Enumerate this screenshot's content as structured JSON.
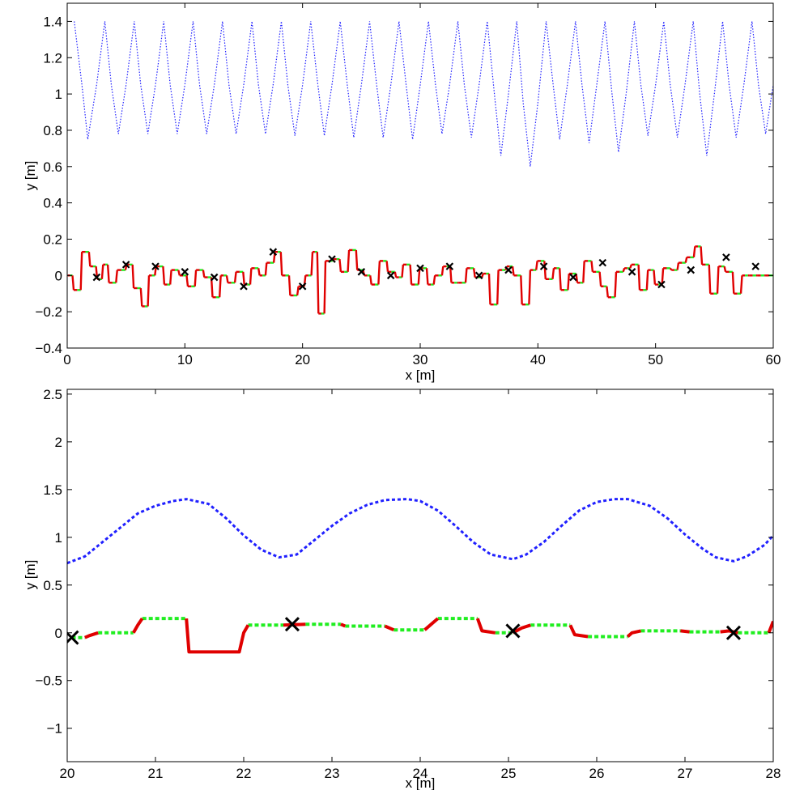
{
  "colors": {
    "ceiling": "#2020ff",
    "swing": "#e00000",
    "stance": "#20ee20",
    "marker": "#000000",
    "axes": "#000000"
  },
  "chart_data": [
    {
      "type": "line",
      "xlabel": "x [m]",
      "ylabel": "y [m]",
      "xlim": [
        0,
        60
      ],
      "ylim": [
        -0.4,
        1.5
      ],
      "xticks": [
        0,
        10,
        20,
        30,
        40,
        50,
        60
      ],
      "yticks": [
        -0.4,
        -0.2,
        0,
        0.2,
        0.4,
        0.6,
        0.8,
        1,
        1.2,
        1.4
      ],
      "ytick_labels": [
        "−0.4",
        "−0.2",
        "0",
        "0.2",
        "0.4",
        "0.6",
        "0.8",
        "1",
        "1.2",
        "1.4"
      ],
      "grid": false,
      "series": [
        {
          "role": "ceiling",
          "style": "dotted",
          "x": [
            0.6,
            1.25,
            1.75,
            2.5,
            3.2,
            3.75,
            4.35,
            5.0,
            5.7,
            6.25,
            6.85,
            7.5,
            8.2,
            8.75,
            9.35,
            10.0,
            10.7,
            11.25,
            11.85,
            12.5,
            13.2,
            13.75,
            14.35,
            15.0,
            15.7,
            16.25,
            16.85,
            17.5,
            18.2,
            18.75,
            19.35,
            20.0,
            20.7,
            21.3,
            21.85,
            22.5,
            23.2,
            23.8,
            24.35,
            25.0,
            25.7,
            26.3,
            26.85,
            27.5,
            28.2,
            28.8,
            29.35,
            30.0,
            30.7,
            31.3,
            31.85,
            32.5,
            33.2,
            33.75,
            34.35,
            35.0,
            35.7,
            36.3,
            36.85,
            37.5,
            38.2,
            38.75,
            39.35,
            40.0,
            40.7,
            41.3,
            41.85,
            42.5,
            43.2,
            43.75,
            44.35,
            45.0,
            45.7,
            46.3,
            46.85,
            47.5,
            48.2,
            48.75,
            49.35,
            50.0,
            50.7,
            51.25,
            51.85,
            52.5,
            53.2,
            53.75,
            54.35,
            55.0,
            55.7,
            56.25,
            56.85,
            57.5,
            58.2,
            58.75,
            59.35,
            60.0
          ],
          "y": [
            1.4,
            1.05,
            0.75,
            1.05,
            1.4,
            1.05,
            0.78,
            1.05,
            1.4,
            1.05,
            0.78,
            1.05,
            1.4,
            1.05,
            0.78,
            1.05,
            1.4,
            1.05,
            0.78,
            1.05,
            1.4,
            1.05,
            0.78,
            1.05,
            1.4,
            1.05,
            0.78,
            1.05,
            1.4,
            1.05,
            0.77,
            1.05,
            1.4,
            1.05,
            0.77,
            1.05,
            1.4,
            1.05,
            0.76,
            1.05,
            1.4,
            1.05,
            0.76,
            1.05,
            1.4,
            1.05,
            0.75,
            1.05,
            1.4,
            1.05,
            0.78,
            1.05,
            1.4,
            1.05,
            0.76,
            1.05,
            1.4,
            1.0,
            0.66,
            1.0,
            1.4,
            0.95,
            0.6,
            0.95,
            1.4,
            1.05,
            0.75,
            1.05,
            1.4,
            1.05,
            0.73,
            1.05,
            1.4,
            1.0,
            0.68,
            1.0,
            1.4,
            1.05,
            0.77,
            1.05,
            1.4,
            1.05,
            0.76,
            1.05,
            1.4,
            1.0,
            0.66,
            1.0,
            1.4,
            1.05,
            0.76,
            1.05,
            1.4,
            1.05,
            0.78,
            1.05
          ]
        },
        {
          "role": "terrain",
          "style": "step",
          "x": [
            0,
            0.5,
            1.2,
            1.9,
            2.5,
            3.0,
            3.5,
            4.2,
            5.0,
            5.6,
            6.3,
            6.9,
            7.5,
            8.2,
            8.8,
            9.5,
            10.2,
            10.9,
            11.6,
            12.3,
            13.0,
            13.6,
            14.3,
            15.0,
            15.6,
            16.3,
            16.9,
            17.6,
            18.2,
            18.9,
            19.6,
            20.2,
            20.8,
            21.3,
            21.9,
            22.6,
            23.2,
            23.9,
            24.6,
            25.2,
            25.8,
            26.5,
            27.2,
            27.9,
            28.5,
            29.2,
            29.9,
            30.6,
            31.2,
            31.9,
            32.6,
            33.2,
            33.9,
            34.6,
            35.3,
            35.9,
            36.6,
            37.3,
            37.9,
            38.6,
            39.3,
            39.9,
            40.6,
            41.3,
            41.9,
            42.6,
            43.3,
            43.9,
            44.6,
            45.3,
            45.9,
            46.6,
            47.3,
            47.9,
            48.6,
            49.3,
            49.9,
            50.6,
            51.3,
            51.9,
            52.6,
            53.3,
            53.9,
            54.6,
            55.3,
            55.9,
            56.6,
            57.3,
            57.9,
            58.6,
            59.3,
            60.0
          ],
          "y": [
            0.0,
            -0.08,
            0.13,
            0.05,
            -0.02,
            0.06,
            -0.04,
            0.03,
            0.06,
            -0.07,
            -0.17,
            0.0,
            0.05,
            -0.05,
            0.03,
            0.0,
            -0.06,
            0.03,
            -0.01,
            -0.12,
            0.0,
            -0.04,
            0.02,
            -0.05,
            0.04,
            0.0,
            0.07,
            0.13,
            0.0,
            -0.11,
            -0.06,
            0.0,
            0.13,
            -0.21,
            0.08,
            0.09,
            0.02,
            0.14,
            0.03,
            0.0,
            -0.05,
            0.08,
            0.02,
            -0.01,
            0.06,
            -0.05,
            0.04,
            -0.05,
            0.0,
            0.05,
            -0.04,
            -0.04,
            0.04,
            -0.01,
            0.01,
            -0.16,
            0.03,
            0.05,
            0.0,
            -0.16,
            0.03,
            0.08,
            -0.02,
            0.04,
            -0.08,
            0.01,
            -0.04,
            0.08,
            0.02,
            -0.06,
            -0.12,
            0.02,
            0.04,
            0.06,
            -0.08,
            0.03,
            -0.05,
            0.04,
            0.03,
            0.07,
            0.1,
            0.16,
            0.06,
            -0.1,
            0.05,
            0.02,
            -0.1,
            0.0,
            0.0,
            0.0,
            0.0,
            0.0
          ]
        },
        {
          "role": "markers",
          "style": "x",
          "x": [
            2.5,
            5.0,
            7.5,
            10.0,
            12.5,
            15.0,
            17.5,
            20.0,
            22.5,
            25.0,
            27.5,
            30.0,
            32.5,
            35.0,
            37.5,
            40.5,
            43.0,
            45.5,
            48.0,
            50.5,
            53.0,
            56.0,
            58.5
          ],
          "y": [
            -0.01,
            0.06,
            0.05,
            0.02,
            -0.01,
            -0.06,
            0.13,
            -0.06,
            0.09,
            0.02,
            0.0,
            0.04,
            0.05,
            0.0,
            0.03,
            0.05,
            -0.01,
            0.07,
            0.02,
            -0.05,
            0.03,
            0.1,
            0.05
          ]
        }
      ]
    },
    {
      "type": "line",
      "xlabel": "x [m]",
      "ylabel": "y [m]",
      "xlim": [
        20,
        28
      ],
      "ylim": [
        -1.35,
        2.55
      ],
      "xticks": [
        20,
        21,
        22,
        23,
        24,
        25,
        26,
        27,
        28
      ],
      "yticks": [
        -1,
        -0.5,
        0,
        0.5,
        1,
        1.5,
        2,
        2.5
      ],
      "ytick_labels": [
        "−1",
        "−0.5",
        "0",
        "0.5",
        "1",
        "1.5",
        "2",
        "2.5"
      ],
      "grid": false,
      "series": [
        {
          "role": "ceiling",
          "style": "dashed",
          "x": [
            20.0,
            20.2,
            20.4,
            20.6,
            20.8,
            21.0,
            21.2,
            21.35,
            21.6,
            21.8,
            22.0,
            22.2,
            22.4,
            22.6,
            22.8,
            23.0,
            23.2,
            23.4,
            23.6,
            23.85,
            24.0,
            24.2,
            24.4,
            24.6,
            24.8,
            25.05,
            25.2,
            25.4,
            25.6,
            25.8,
            26.0,
            26.2,
            26.35,
            26.6,
            26.8,
            27.0,
            27.2,
            27.35,
            27.55,
            27.7,
            27.9,
            28.0
          ],
          "y": [
            0.73,
            0.8,
            0.95,
            1.1,
            1.25,
            1.33,
            1.38,
            1.4,
            1.35,
            1.2,
            1.02,
            0.87,
            0.79,
            0.82,
            0.97,
            1.12,
            1.25,
            1.34,
            1.39,
            1.4,
            1.38,
            1.28,
            1.12,
            0.95,
            0.82,
            0.77,
            0.82,
            0.95,
            1.12,
            1.28,
            1.37,
            1.4,
            1.4,
            1.33,
            1.2,
            1.03,
            0.88,
            0.79,
            0.75,
            0.8,
            0.92,
            1.02
          ]
        },
        {
          "role": "stance",
          "style": "dashed",
          "segments": [
            {
              "x": [
                20.05,
                20.2
              ],
              "y": [
                -0.05,
                -0.05
              ]
            },
            {
              "x": [
                20.35,
                20.75
              ],
              "y": [
                0.0,
                0.0
              ]
            },
            {
              "x": [
                20.85,
                21.35
              ],
              "y": [
                0.15,
                0.15
              ]
            },
            {
              "x": [
                22.05,
                22.45
              ],
              "y": [
                0.08,
                0.08
              ]
            },
            {
              "x": [
                22.7,
                23.1
              ],
              "y": [
                0.09,
                0.09
              ]
            },
            {
              "x": [
                23.15,
                23.6
              ],
              "y": [
                0.07,
                0.07
              ]
            },
            {
              "x": [
                23.7,
                24.05
              ],
              "y": [
                0.03,
                0.03
              ]
            },
            {
              "x": [
                24.2,
                24.65
              ],
              "y": [
                0.15,
                0.15
              ]
            },
            {
              "x": [
                24.85,
                25.05
              ],
              "y": [
                0.0,
                0.0
              ]
            },
            {
              "x": [
                25.25,
                25.7
              ],
              "y": [
                0.08,
                0.08
              ]
            },
            {
              "x": [
                25.9,
                26.35
              ],
              "y": [
                -0.04,
                -0.04
              ]
            },
            {
              "x": [
                26.5,
                26.95
              ],
              "y": [
                0.02,
                0.02
              ]
            },
            {
              "x": [
                27.05,
                27.4
              ],
              "y": [
                0.01,
                0.01
              ]
            },
            {
              "x": [
                27.6,
                27.95
              ],
              "y": [
                0.0,
                0.0
              ]
            }
          ]
        },
        {
          "role": "swing",
          "style": "solid",
          "segments": [
            {
              "x": [
                20.2,
                20.25,
                20.35
              ],
              "y": [
                -0.05,
                -0.03,
                0.0
              ]
            },
            {
              "x": [
                20.75,
                20.8,
                20.85
              ],
              "y": [
                0.0,
                0.08,
                0.15
              ]
            },
            {
              "x": [
                21.35,
                21.38,
                21.95,
                22.0,
                22.05
              ],
              "y": [
                0.15,
                -0.2,
                -0.2,
                0.0,
                0.08
              ]
            },
            {
              "x": [
                22.45,
                22.7
              ],
              "y": [
                0.08,
                0.09
              ]
            },
            {
              "x": [
                23.1,
                23.15
              ],
              "y": [
                0.09,
                0.07
              ]
            },
            {
              "x": [
                23.6,
                23.7
              ],
              "y": [
                0.07,
                0.03
              ]
            },
            {
              "x": [
                24.05,
                24.2
              ],
              "y": [
                0.03,
                0.15
              ]
            },
            {
              "x": [
                24.65,
                24.7,
                24.85
              ],
              "y": [
                0.15,
                0.02,
                0.0
              ]
            },
            {
              "x": [
                25.05,
                25.15,
                25.25
              ],
              "y": [
                0.0,
                0.05,
                0.08
              ]
            },
            {
              "x": [
                25.7,
                25.75,
                25.9
              ],
              "y": [
                0.08,
                -0.02,
                -0.04
              ]
            },
            {
              "x": [
                26.35,
                26.4,
                26.5
              ],
              "y": [
                -0.04,
                0.0,
                0.02
              ]
            },
            {
              "x": [
                26.95,
                27.05
              ],
              "y": [
                0.02,
                0.01
              ]
            },
            {
              "x": [
                27.4,
                27.5,
                27.6
              ],
              "y": [
                0.01,
                0.02,
                0.0
              ]
            },
            {
              "x": [
                27.95,
                28.0
              ],
              "y": [
                0.0,
                0.12
              ]
            }
          ]
        },
        {
          "role": "markers",
          "style": "x",
          "x": [
            20.05,
            22.55,
            25.05,
            27.55
          ],
          "y": [
            -0.05,
            0.09,
            0.02,
            0.0
          ]
        }
      ]
    }
  ]
}
